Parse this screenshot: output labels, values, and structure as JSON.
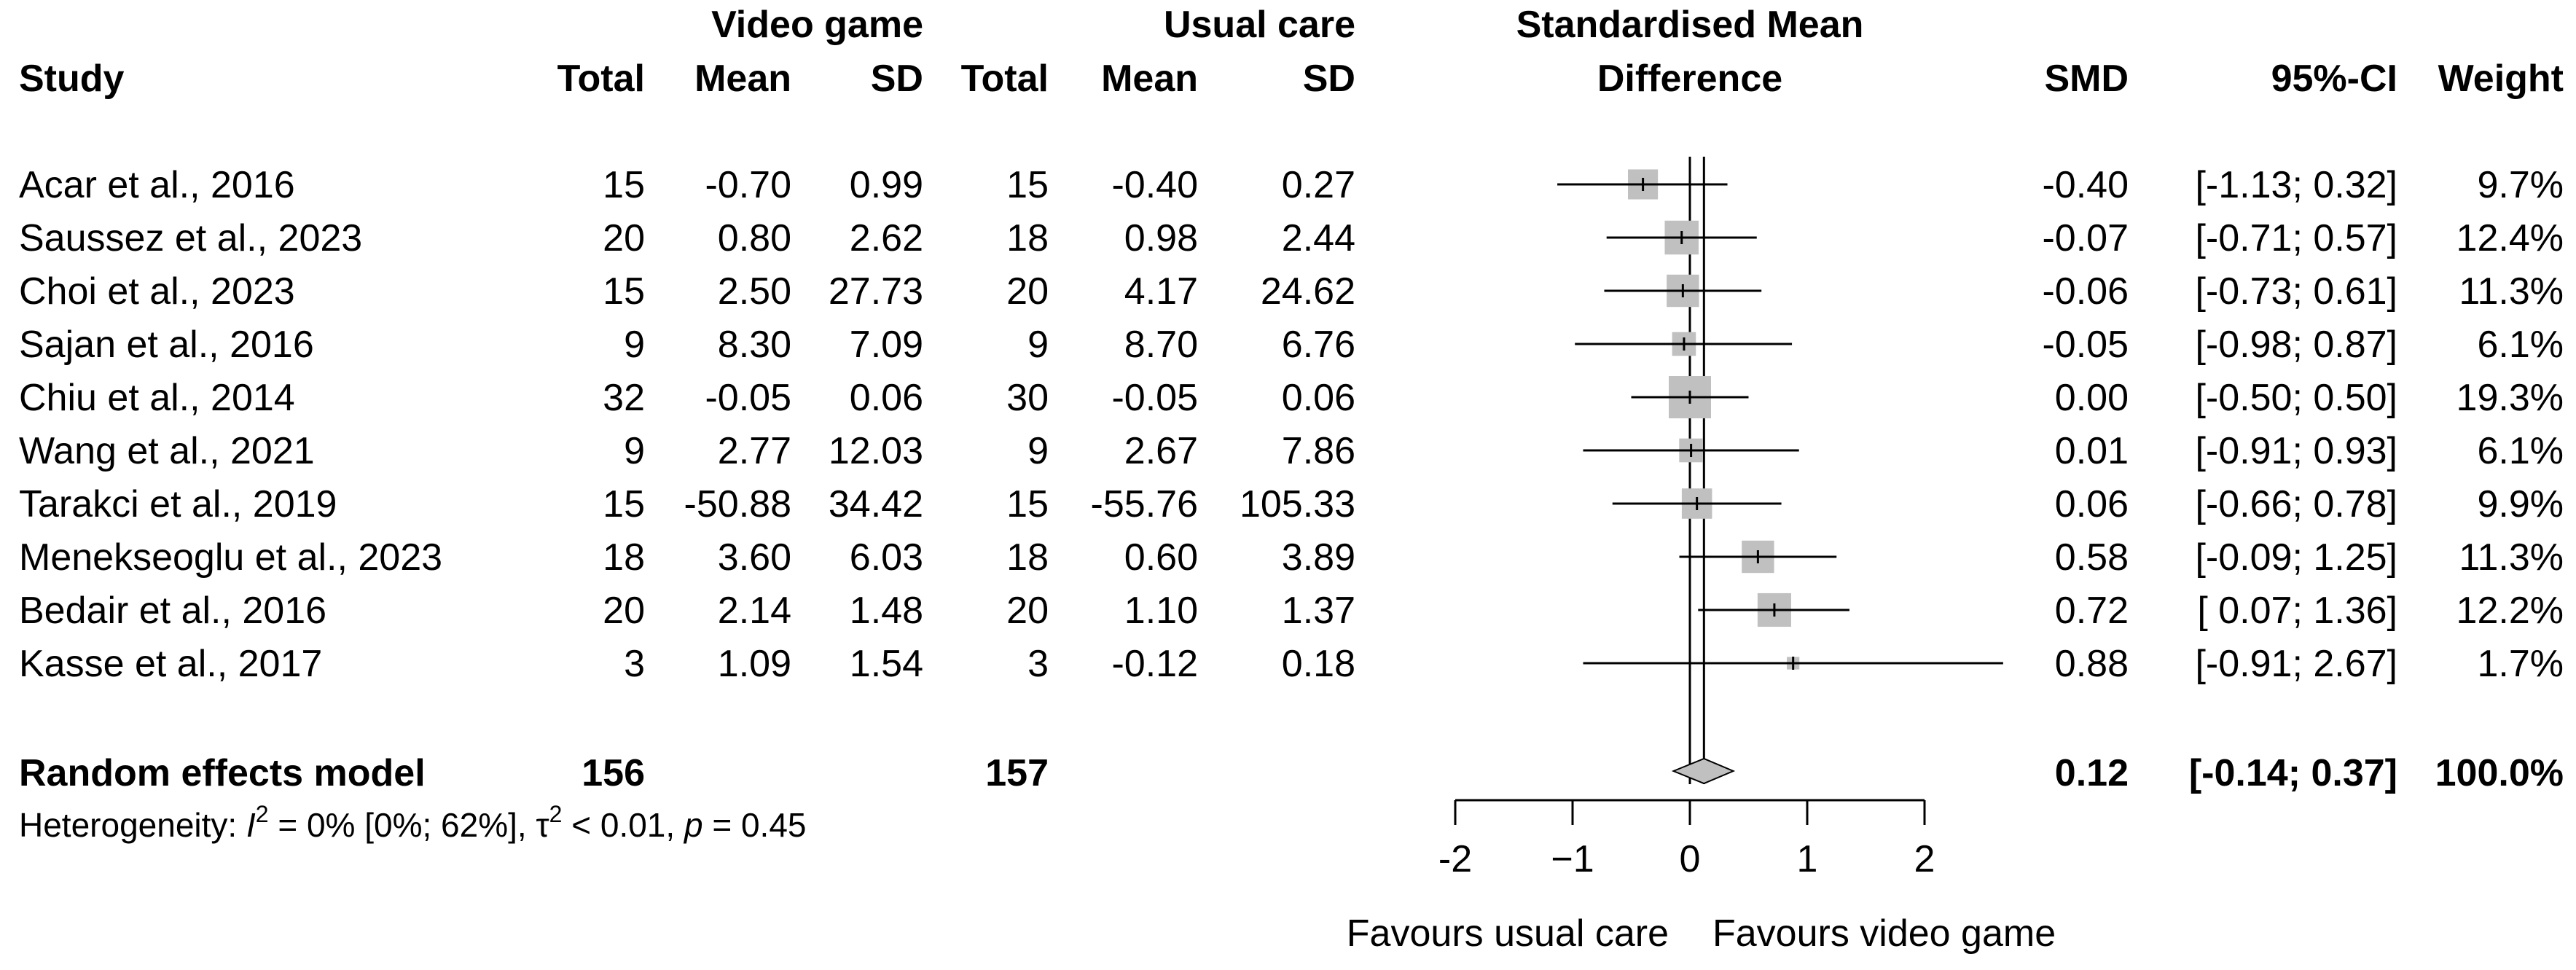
{
  "headers": {
    "video_game": "Video game",
    "usual_care": "Usual care",
    "smd_title_line1": "Standardised Mean",
    "smd_title_line2": "Difference",
    "study": "Study",
    "total": "Total",
    "mean": "Mean",
    "sd": "SD",
    "smd": "SMD",
    "ci": "95%-CI",
    "weight": "Weight"
  },
  "summary": {
    "label": "Random effects model",
    "vg_total": "156",
    "uc_total": "157",
    "smd": "0.12",
    "ci": "[-0.14; 0.37]",
    "weight": "100.0%"
  },
  "heterogeneity": {
    "prefix": "Heterogeneity: ",
    "i2_symbol": "I",
    "i2_sup": "2",
    "i2_text": " = 0% [0%; 62%], ",
    "tau_symbol": "τ",
    "tau_sup": "2",
    "tau_text": " < 0.01, ",
    "p_symbol": "p",
    "p_text": " = 0.45"
  },
  "axis_labels": {
    "favours_left": "Favours usual care",
    "favours_right": "Favours video game"
  },
  "colors": {
    "square": "#c0c0c0",
    "diamond": "#c0c0c0",
    "line": "#000000"
  },
  "chart_data": {
    "type": "forest",
    "title": "Standardised Mean Difference",
    "xlim": [
      -2,
      2
    ],
    "ticks": [
      -2,
      -1,
      0,
      1,
      2
    ],
    "tick_labels": [
      "-2",
      "−1",
      "0",
      "1",
      "2"
    ],
    "null_value": 0,
    "studies": [
      {
        "study": "Acar et al., 2016",
        "vg_total": "15",
        "vg_mean": "-0.70",
        "vg_sd": "0.99",
        "uc_total": "15",
        "uc_mean": "-0.40",
        "uc_sd": "0.27",
        "smd": -0.4,
        "lower": -1.13,
        "upper": 0.32,
        "smd_text": "-0.40",
        "ci_text": "[-1.13; 0.32]",
        "weight": 9.7,
        "weight_text": "9.7%"
      },
      {
        "study": "Saussez et al., 2023",
        "vg_total": "20",
        "vg_mean": "0.80",
        "vg_sd": "2.62",
        "uc_total": "18",
        "uc_mean": "0.98",
        "uc_sd": "2.44",
        "smd": -0.07,
        "lower": -0.71,
        "upper": 0.57,
        "smd_text": "-0.07",
        "ci_text": "[-0.71; 0.57]",
        "weight": 12.4,
        "weight_text": "12.4%"
      },
      {
        "study": "Choi et al., 2023",
        "vg_total": "15",
        "vg_mean": "2.50",
        "vg_sd": "27.73",
        "uc_total": "20",
        "uc_mean": "4.17",
        "uc_sd": "24.62",
        "smd": -0.06,
        "lower": -0.73,
        "upper": 0.61,
        "smd_text": "-0.06",
        "ci_text": "[-0.73; 0.61]",
        "weight": 11.3,
        "weight_text": "11.3%"
      },
      {
        "study": "Sajan et al., 2016",
        "vg_total": "9",
        "vg_mean": "8.30",
        "vg_sd": "7.09",
        "uc_total": "9",
        "uc_mean": "8.70",
        "uc_sd": "6.76",
        "smd": -0.05,
        "lower": -0.98,
        "upper": 0.87,
        "smd_text": "-0.05",
        "ci_text": "[-0.98; 0.87]",
        "weight": 6.1,
        "weight_text": "6.1%"
      },
      {
        "study": "Chiu et al., 2014",
        "vg_total": "32",
        "vg_mean": "-0.05",
        "vg_sd": "0.06",
        "uc_total": "30",
        "uc_mean": "-0.05",
        "uc_sd": "0.06",
        "smd": 0.0,
        "lower": -0.5,
        "upper": 0.5,
        "smd_text": "0.00",
        "ci_text": "[-0.50; 0.50]",
        "weight": 19.3,
        "weight_text": "19.3%"
      },
      {
        "study": "Wang et al., 2021",
        "vg_total": "9",
        "vg_mean": "2.77",
        "vg_sd": "12.03",
        "uc_total": "9",
        "uc_mean": "2.67",
        "uc_sd": "7.86",
        "smd": 0.01,
        "lower": -0.91,
        "upper": 0.93,
        "smd_text": "0.01",
        "ci_text": "[-0.91; 0.93]",
        "weight": 6.1,
        "weight_text": "6.1%"
      },
      {
        "study": "Tarakci et al., 2019",
        "vg_total": "15",
        "vg_mean": "-50.88",
        "vg_sd": "34.42",
        "uc_total": "15",
        "uc_mean": "-55.76",
        "uc_sd": "105.33",
        "smd": 0.06,
        "lower": -0.66,
        "upper": 0.78,
        "smd_text": "0.06",
        "ci_text": "[-0.66; 0.78]",
        "weight": 9.9,
        "weight_text": "9.9%"
      },
      {
        "study": "Menekseoglu et al., 2023",
        "vg_total": "18",
        "vg_mean": "3.60",
        "vg_sd": "6.03",
        "uc_total": "18",
        "uc_mean": "0.60",
        "uc_sd": "3.89",
        "smd": 0.58,
        "lower": -0.09,
        "upper": 1.25,
        "smd_text": "0.58",
        "ci_text": "[-0.09; 1.25]",
        "weight": 11.3,
        "weight_text": "11.3%"
      },
      {
        "study": "Bedair et al., 2016",
        "vg_total": "20",
        "vg_mean": "2.14",
        "vg_sd": "1.48",
        "uc_total": "20",
        "uc_mean": "1.10",
        "uc_sd": "1.37",
        "smd": 0.72,
        "lower": 0.07,
        "upper": 1.36,
        "smd_text": "0.72",
        "ci_text": "[ 0.07; 1.36]",
        "weight": 12.2,
        "weight_text": "12.2%"
      },
      {
        "study": "Kasse et al., 2017",
        "vg_total": "3",
        "vg_mean": "1.09",
        "vg_sd": "1.54",
        "uc_total": "3",
        "uc_mean": "-0.12",
        "uc_sd": "0.18",
        "smd": 0.88,
        "lower": -0.91,
        "upper": 2.67,
        "smd_text": "0.88",
        "ci_text": "[-0.91; 2.67]",
        "weight": 1.7,
        "weight_text": "1.7%"
      }
    ],
    "pooled": {
      "smd": 0.12,
      "lower": -0.14,
      "upper": 0.37
    }
  }
}
